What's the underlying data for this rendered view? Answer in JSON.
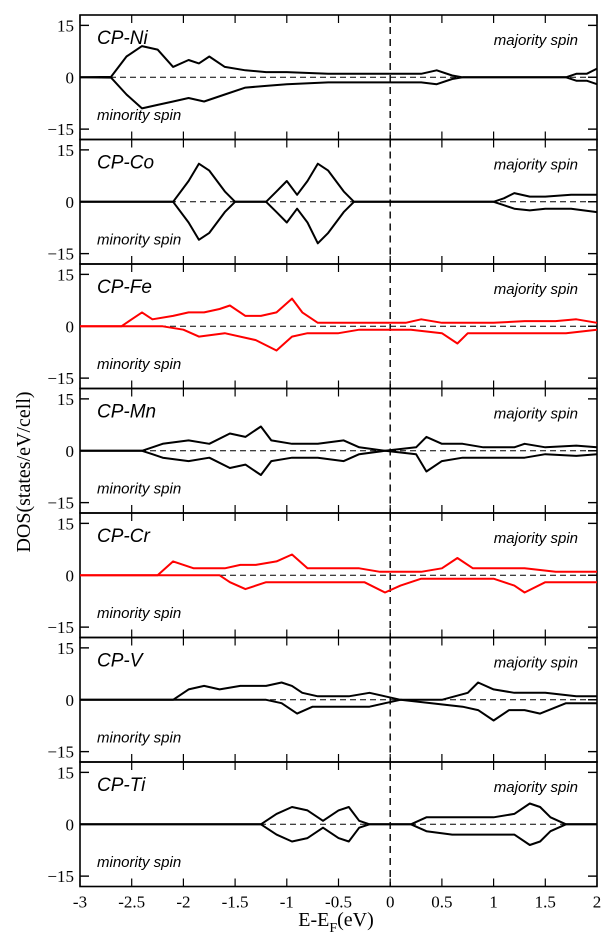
{
  "chart_data": {
    "type": "line",
    "xlabel": "E-E",
    "xlabel_sub": "F",
    "xlabel_unit": "(eV)",
    "ylabel": "DOS(states/eV/cell)",
    "xlim": [
      -3,
      2
    ],
    "ylim": [
      -18,
      18
    ],
    "x_ticks": [
      -3,
      -2.5,
      -2,
      -1.5,
      -1,
      -0.5,
      0,
      0.5,
      1,
      1.5,
      2
    ],
    "x_tick_labels": [
      "-3",
      "-2.5",
      "-2",
      "-1.5",
      "-1",
      "-0.5",
      "0",
      "0.5",
      "1",
      "1.5",
      "2"
    ],
    "y_ticks": [
      15,
      0,
      -15
    ],
    "y_tick_labels": [
      "15",
      "0",
      "−15"
    ],
    "panels": [
      {
        "label": "CP-Ni",
        "majority_label": "majority spin",
        "minority_label": "minority spin",
        "color": "#000000",
        "majority": [
          [
            -3,
            0
          ],
          [
            -2.7,
            0.1
          ],
          [
            -2.55,
            6
          ],
          [
            -2.4,
            9
          ],
          [
            -2.25,
            8
          ],
          [
            -2.1,
            3
          ],
          [
            -1.95,
            5
          ],
          [
            -1.85,
            4
          ],
          [
            -1.75,
            6
          ],
          [
            -1.6,
            3
          ],
          [
            -1.4,
            2
          ],
          [
            -1.2,
            1.5
          ],
          [
            -1,
            1.5
          ],
          [
            -0.6,
            1
          ],
          [
            0,
            1
          ],
          [
            0.3,
            1
          ],
          [
            0.45,
            2
          ],
          [
            0.6,
            0.5
          ],
          [
            0.7,
            0
          ],
          [
            1.7,
            0
          ],
          [
            1.8,
            1
          ],
          [
            1.9,
            1
          ],
          [
            2,
            2.5
          ]
        ],
        "minority": [
          [
            -3,
            0
          ],
          [
            -2.7,
            -0.1
          ],
          [
            -2.55,
            -5
          ],
          [
            -2.4,
            -9
          ],
          [
            -2.25,
            -8
          ],
          [
            -2.1,
            -7
          ],
          [
            -1.95,
            -6
          ],
          [
            -1.8,
            -7
          ],
          [
            -1.6,
            -5
          ],
          [
            -1.4,
            -3
          ],
          [
            -1.2,
            -2.5
          ],
          [
            -1,
            -2
          ],
          [
            -0.6,
            -1.5
          ],
          [
            0,
            -1.5
          ],
          [
            0.3,
            -1.5
          ],
          [
            0.45,
            -2
          ],
          [
            0.6,
            -0.5
          ],
          [
            0.7,
            0
          ],
          [
            1.7,
            0
          ],
          [
            1.8,
            -1
          ],
          [
            1.9,
            -1
          ],
          [
            2,
            -2
          ]
        ]
      },
      {
        "label": "CP-Co",
        "majority_label": "majority spin",
        "minority_label": "minority spin",
        "color": "#000000",
        "majority": [
          [
            -3,
            0
          ],
          [
            -2.1,
            0
          ],
          [
            -1.95,
            6
          ],
          [
            -1.85,
            11
          ],
          [
            -1.75,
            9
          ],
          [
            -1.6,
            3
          ],
          [
            -1.5,
            0
          ],
          [
            -1.2,
            0
          ],
          [
            -1.1,
            3
          ],
          [
            -1.0,
            6
          ],
          [
            -0.9,
            2
          ],
          [
            -0.8,
            6
          ],
          [
            -0.7,
            11
          ],
          [
            -0.6,
            9
          ],
          [
            -0.45,
            3
          ],
          [
            -0.35,
            0
          ],
          [
            1,
            0
          ],
          [
            1.1,
            1
          ],
          [
            1.2,
            2.5
          ],
          [
            1.35,
            1.5
          ],
          [
            1.5,
            1.5
          ],
          [
            1.75,
            2
          ],
          [
            2,
            2
          ]
        ],
        "minority": [
          [
            -3,
            0
          ],
          [
            -2.1,
            0
          ],
          [
            -1.95,
            -6
          ],
          [
            -1.85,
            -11
          ],
          [
            -1.75,
            -9
          ],
          [
            -1.6,
            -3
          ],
          [
            -1.5,
            0
          ],
          [
            -1.2,
            0
          ],
          [
            -1.1,
            -3
          ],
          [
            -1.0,
            -6
          ],
          [
            -0.9,
            -2
          ],
          [
            -0.8,
            -6
          ],
          [
            -0.7,
            -12
          ],
          [
            -0.6,
            -9
          ],
          [
            -0.45,
            -3
          ],
          [
            -0.35,
            0
          ],
          [
            1,
            0
          ],
          [
            1.1,
            -1
          ],
          [
            1.2,
            -2
          ],
          [
            1.35,
            -2.5
          ],
          [
            1.5,
            -2
          ],
          [
            1.75,
            -2
          ],
          [
            2,
            -3
          ]
        ]
      },
      {
        "label": "CP-Fe",
        "majority_label": "majority spin",
        "minority_label": "minority spin",
        "color": "#ff0000",
        "majority": [
          [
            -3,
            0
          ],
          [
            -2.6,
            0
          ],
          [
            -2.5,
            2
          ],
          [
            -2.4,
            4
          ],
          [
            -2.3,
            2
          ],
          [
            -2.1,
            3
          ],
          [
            -1.95,
            4
          ],
          [
            -1.8,
            4
          ],
          [
            -1.65,
            5
          ],
          [
            -1.55,
            6
          ],
          [
            -1.4,
            3
          ],
          [
            -1.25,
            3
          ],
          [
            -1.1,
            4
          ],
          [
            -0.95,
            8
          ],
          [
            -0.85,
            4
          ],
          [
            -0.7,
            1
          ],
          [
            -0.3,
            1
          ],
          [
            0,
            1
          ],
          [
            0.15,
            1
          ],
          [
            0.3,
            2
          ],
          [
            0.5,
            1
          ],
          [
            0.7,
            1
          ],
          [
            1,
            1
          ],
          [
            1.3,
            1.5
          ],
          [
            1.6,
            1.5
          ],
          [
            1.8,
            2
          ],
          [
            2,
            1
          ]
        ],
        "minority": [
          [
            -3,
            0
          ],
          [
            -2.2,
            0
          ],
          [
            -2.0,
            -1
          ],
          [
            -1.85,
            -3
          ],
          [
            -1.6,
            -2
          ],
          [
            -1.3,
            -4
          ],
          [
            -1.1,
            -7
          ],
          [
            -0.95,
            -3
          ],
          [
            -0.8,
            -2
          ],
          [
            -0.5,
            -2
          ],
          [
            -0.3,
            -1
          ],
          [
            0,
            -1
          ],
          [
            0.2,
            -1
          ],
          [
            0.5,
            -2
          ],
          [
            0.65,
            -5
          ],
          [
            0.75,
            -2
          ],
          [
            1,
            -2
          ],
          [
            1.4,
            -2
          ],
          [
            1.7,
            -2
          ],
          [
            2,
            -1
          ]
        ]
      },
      {
        "label": "CP-Mn",
        "majority_label": "majority spin",
        "minority_label": "minority spin",
        "color": "#000000",
        "majority": [
          [
            -3,
            0
          ],
          [
            -2.4,
            0
          ],
          [
            -2.3,
            1
          ],
          [
            -2.2,
            2
          ],
          [
            -1.95,
            3
          ],
          [
            -1.75,
            2
          ],
          [
            -1.55,
            5
          ],
          [
            -1.4,
            4
          ],
          [
            -1.25,
            7
          ],
          [
            -1.15,
            3
          ],
          [
            -0.95,
            2
          ],
          [
            -0.7,
            2
          ],
          [
            -0.45,
            3
          ],
          [
            -0.3,
            1
          ],
          [
            -0.05,
            0
          ],
          [
            0.25,
            1
          ],
          [
            0.35,
            4
          ],
          [
            0.5,
            2
          ],
          [
            0.7,
            2
          ],
          [
            0.9,
            1
          ],
          [
            1.2,
            1
          ],
          [
            1.3,
            2
          ],
          [
            1.5,
            1
          ],
          [
            1.8,
            1.5
          ],
          [
            2,
            1
          ]
        ],
        "minority": [
          [
            -3,
            0
          ],
          [
            -2.4,
            0
          ],
          [
            -2.3,
            -1
          ],
          [
            -2.2,
            -2
          ],
          [
            -1.95,
            -3
          ],
          [
            -1.75,
            -2
          ],
          [
            -1.55,
            -5
          ],
          [
            -1.4,
            -4
          ],
          [
            -1.25,
            -7
          ],
          [
            -1.15,
            -3
          ],
          [
            -0.95,
            -2
          ],
          [
            -0.7,
            -2
          ],
          [
            -0.45,
            -3
          ],
          [
            -0.3,
            -1
          ],
          [
            -0.05,
            0
          ],
          [
            0.25,
            -1
          ],
          [
            0.35,
            -6
          ],
          [
            0.5,
            -3
          ],
          [
            0.7,
            -2
          ],
          [
            0.9,
            -2
          ],
          [
            1.2,
            -2
          ],
          [
            1.3,
            -2
          ],
          [
            1.5,
            -1
          ],
          [
            1.8,
            -1.5
          ],
          [
            2,
            -1
          ]
        ]
      },
      {
        "label": "CP-Cr",
        "majority_label": "majority spin",
        "minority_label": "minority spin",
        "color": "#ff0000",
        "majority": [
          [
            -3,
            0
          ],
          [
            -2.25,
            0
          ],
          [
            -2.1,
            4
          ],
          [
            -1.9,
            2
          ],
          [
            -1.6,
            2
          ],
          [
            -1.45,
            3
          ],
          [
            -1.3,
            3
          ],
          [
            -1.1,
            4
          ],
          [
            -0.95,
            6
          ],
          [
            -0.8,
            2
          ],
          [
            -0.5,
            2
          ],
          [
            -0.3,
            2
          ],
          [
            -0.1,
            1
          ],
          [
            0.3,
            1
          ],
          [
            0.5,
            2
          ],
          [
            0.65,
            5
          ],
          [
            0.8,
            2
          ],
          [
            1,
            2
          ],
          [
            1.3,
            2
          ],
          [
            1.6,
            1
          ],
          [
            2,
            1
          ]
        ],
        "minority": [
          [
            -3,
            0
          ],
          [
            -1.65,
            0
          ],
          [
            -1.55,
            -2
          ],
          [
            -1.4,
            -4
          ],
          [
            -1.2,
            -2
          ],
          [
            -0.9,
            -2
          ],
          [
            -0.5,
            -2
          ],
          [
            -0.25,
            -2
          ],
          [
            -0.05,
            -5
          ],
          [
            0.1,
            -3
          ],
          [
            0.3,
            -1
          ],
          [
            0.7,
            -1
          ],
          [
            1,
            -1
          ],
          [
            1.2,
            -3
          ],
          [
            1.3,
            -5
          ],
          [
            1.5,
            -2
          ],
          [
            1.8,
            -2
          ],
          [
            2,
            -2
          ]
        ]
      },
      {
        "label": "CP-V",
        "majority_label": "majority spin",
        "minority_label": "minority spin",
        "color": "#000000",
        "majority": [
          [
            -3,
            0
          ],
          [
            -2.1,
            0
          ],
          [
            -1.95,
            3
          ],
          [
            -1.8,
            4
          ],
          [
            -1.65,
            3
          ],
          [
            -1.45,
            4
          ],
          [
            -1.2,
            4
          ],
          [
            -1.05,
            5
          ],
          [
            -0.95,
            4
          ],
          [
            -0.85,
            2
          ],
          [
            -0.7,
            1
          ],
          [
            -0.4,
            1
          ],
          [
            -0.2,
            2
          ],
          [
            -0.05,
            1
          ],
          [
            0.1,
            0
          ],
          [
            0.5,
            0
          ],
          [
            0.75,
            2
          ],
          [
            0.85,
            5
          ],
          [
            1.0,
            3
          ],
          [
            1.2,
            2
          ],
          [
            1.5,
            2
          ],
          [
            1.8,
            1
          ],
          [
            2,
            1
          ]
        ],
        "minority": [
          [
            -3,
            0
          ],
          [
            -1.2,
            0
          ],
          [
            -1.05,
            -1
          ],
          [
            -0.9,
            -4
          ],
          [
            -0.75,
            -2
          ],
          [
            -0.4,
            -2
          ],
          [
            -0.2,
            -2
          ],
          [
            -0.05,
            -1
          ],
          [
            0.1,
            0
          ],
          [
            0.4,
            -1
          ],
          [
            0.7,
            -2
          ],
          [
            0.85,
            -3
          ],
          [
            1.0,
            -6
          ],
          [
            1.15,
            -3
          ],
          [
            1.3,
            -3
          ],
          [
            1.45,
            -4
          ],
          [
            1.7,
            -1
          ],
          [
            2,
            -1
          ]
        ]
      },
      {
        "label": "CP-Ti",
        "majority_label": "majority spin",
        "minority_label": "minority spin",
        "color": "#000000",
        "majority": [
          [
            -3,
            0
          ],
          [
            -1.25,
            0
          ],
          [
            -1.1,
            3
          ],
          [
            -0.95,
            5
          ],
          [
            -0.8,
            4
          ],
          [
            -0.65,
            1
          ],
          [
            -0.5,
            4
          ],
          [
            -0.4,
            5
          ],
          [
            -0.3,
            1
          ],
          [
            -0.2,
            0
          ],
          [
            0.05,
            0
          ],
          [
            0.2,
            0
          ],
          [
            0.35,
            2
          ],
          [
            0.6,
            2
          ],
          [
            1,
            2
          ],
          [
            1.2,
            3
          ],
          [
            1.35,
            6
          ],
          [
            1.45,
            5
          ],
          [
            1.55,
            2
          ],
          [
            1.7,
            0
          ],
          [
            2,
            0
          ]
        ],
        "minority": [
          [
            -3,
            0
          ],
          [
            -1.25,
            0
          ],
          [
            -1.1,
            -3
          ],
          [
            -0.95,
            -5
          ],
          [
            -0.8,
            -4
          ],
          [
            -0.65,
            -1
          ],
          [
            -0.5,
            -4
          ],
          [
            -0.4,
            -5
          ],
          [
            -0.3,
            -1
          ],
          [
            -0.2,
            0
          ],
          [
            0.05,
            0
          ],
          [
            0.2,
            0
          ],
          [
            0.35,
            -2
          ],
          [
            0.6,
            -3
          ],
          [
            1,
            -3
          ],
          [
            1.2,
            -3
          ],
          [
            1.35,
            -6
          ],
          [
            1.45,
            -5
          ],
          [
            1.55,
            -2
          ],
          [
            1.7,
            0
          ],
          [
            2,
            0
          ]
        ]
      }
    ]
  }
}
